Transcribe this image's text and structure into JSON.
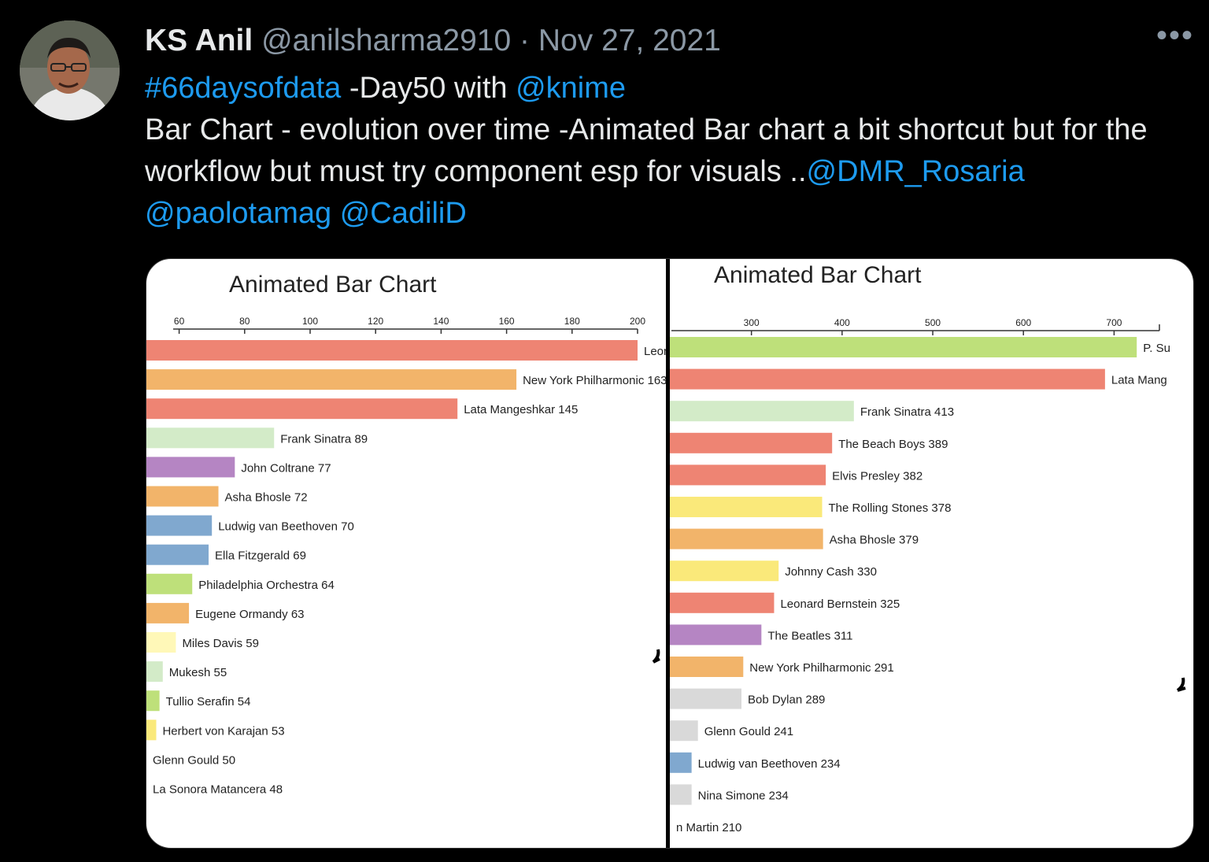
{
  "tweet": {
    "display_name": "KS Anil",
    "handle": "@anilsharma2910",
    "separator": "·",
    "date": "Nov 27, 2021",
    "more_label": "•••",
    "line1": {
      "hashtag": "#66daysofdata",
      "text": " -Day50 with ",
      "mention": "@knime"
    },
    "line2": "Bar Chart - evolution over time -Animated Bar chart a bit shortcut but for the workflow but must try component esp for visuals ..",
    "mentions": [
      "@DMR_Rosaria",
      "@paolotamag",
      "@CadiliD"
    ]
  },
  "chart_data": [
    {
      "type": "bar",
      "orientation": "horizontal",
      "title": "Animated Bar Chart",
      "xlim": [
        50,
        200
      ],
      "x_ticks": [
        "60",
        "80",
        "100",
        "120",
        "140",
        "160",
        "180",
        "200"
      ],
      "x_tick_values": [
        60,
        80,
        100,
        120,
        140,
        160,
        180,
        200
      ],
      "bars": [
        {
          "label": "Leon",
          "value": 200,
          "color": "#ee8473"
        },
        {
          "label": "New York Philharmonic 163",
          "value": 163,
          "color": "#f2b46a"
        },
        {
          "label": "Lata Mangeshkar 145",
          "value": 145,
          "color": "#ee8473"
        },
        {
          "label": "Frank Sinatra 89",
          "value": 89,
          "color": "#d3ebc8"
        },
        {
          "label": "John Coltrane 77",
          "value": 77,
          "color": "#b585c3"
        },
        {
          "label": "Asha Bhosle 72",
          "value": 72,
          "color": "#f2b46a"
        },
        {
          "label": "Ludwig van Beethoven 70",
          "value": 70,
          "color": "#80a8cf"
        },
        {
          "label": "Ella Fitzgerald 69",
          "value": 69,
          "color": "#80a8cf"
        },
        {
          "label": "Philadelphia Orchestra 64",
          "value": 64,
          "color": "#bee07a"
        },
        {
          "label": "Eugene Ormandy 63",
          "value": 63,
          "color": "#f2b46a"
        },
        {
          "label": "Miles Davis 59",
          "value": 59,
          "color": "#fff8b8"
        },
        {
          "label": "Mukesh 55",
          "value": 55,
          "color": "#d3ebc8"
        },
        {
          "label": "Tullio Serafin 54",
          "value": 54,
          "color": "#bee07a"
        },
        {
          "label": "Herbert von Karajan 53",
          "value": 53,
          "color": "#fae97a"
        },
        {
          "label": "Glenn Gould 50",
          "value": 50,
          "color": "#d9d9d9"
        },
        {
          "label": "La Sonora Matancera 48",
          "value": 48,
          "color": "#d9d9d9"
        }
      ]
    },
    {
      "type": "bar",
      "orientation": "horizontal",
      "title": "Animated Bar Chart",
      "xlim": [
        210,
        750
      ],
      "x_ticks": [
        "300",
        "400",
        "500",
        "600",
        "700"
      ],
      "x_tick_values": [
        300,
        400,
        500,
        600,
        700
      ],
      "bars": [
        {
          "label": "P. Su",
          "value": 725,
          "color": "#bee07a"
        },
        {
          "label": "Lata Mang",
          "value": 690,
          "color": "#ee8473"
        },
        {
          "label": "Frank Sinatra 413",
          "value": 413,
          "color": "#d3ebc8"
        },
        {
          "label": "The Beach Boys 389",
          "value": 389,
          "color": "#ee8473"
        },
        {
          "label": "Elvis Presley 382",
          "value": 382,
          "color": "#ee8473"
        },
        {
          "label": "The Rolling Stones 378",
          "value": 378,
          "color": "#fae97a"
        },
        {
          "label": "Asha Bhosle 379",
          "value": 379,
          "color": "#f2b46a"
        },
        {
          "label": "Johnny Cash 330",
          "value": 330,
          "color": "#fae97a"
        },
        {
          "label": "Leonard Bernstein 325",
          "value": 325,
          "color": "#ee8473"
        },
        {
          "label": "The Beatles 311",
          "value": 311,
          "color": "#b585c3"
        },
        {
          "label": "New York Philharmonic 291",
          "value": 291,
          "color": "#f2b46a"
        },
        {
          "label": "Bob Dylan 289",
          "value": 289,
          "color": "#d9d9d9"
        },
        {
          "label": "Glenn Gould 241",
          "value": 241,
          "color": "#d9d9d9"
        },
        {
          "label": "Ludwig van Beethoven 234",
          "value": 234,
          "color": "#80a8cf"
        },
        {
          "label": "Nina Simone 234",
          "value": 234,
          "color": "#d9d9d9"
        },
        {
          "label": "n Martin 210",
          "value": 210,
          "color": "#d9d9d9"
        }
      ]
    }
  ]
}
